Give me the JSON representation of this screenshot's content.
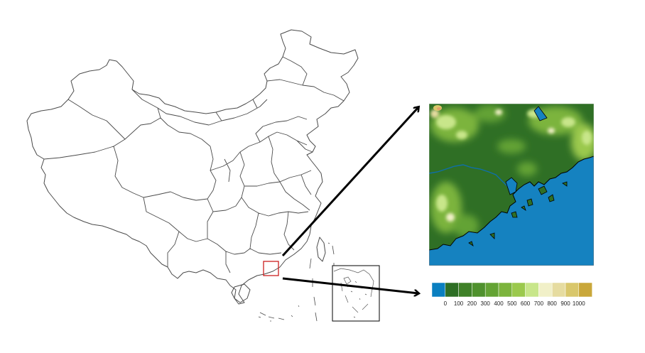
{
  "figure": {
    "colors": {
      "outline": "#4a4a4a",
      "highlight_box": "#cc1f1f",
      "arrow": "#000000",
      "sea": "#1582c0"
    },
    "colorbar": {
      "labels": [
        "0",
        "100",
        "200",
        "300",
        "400",
        "500",
        "600",
        "700",
        "800",
        "900",
        "1000"
      ],
      "colors": [
        "#0a7fc0",
        "#2e6f25",
        "#3f8128",
        "#4f912d",
        "#64a334",
        "#7cb43d",
        "#9bc94d",
        "#c8e68a",
        "#f1f0c8",
        "#e6dca0",
        "#d9c76b",
        "#c9a73a"
      ]
    }
  }
}
